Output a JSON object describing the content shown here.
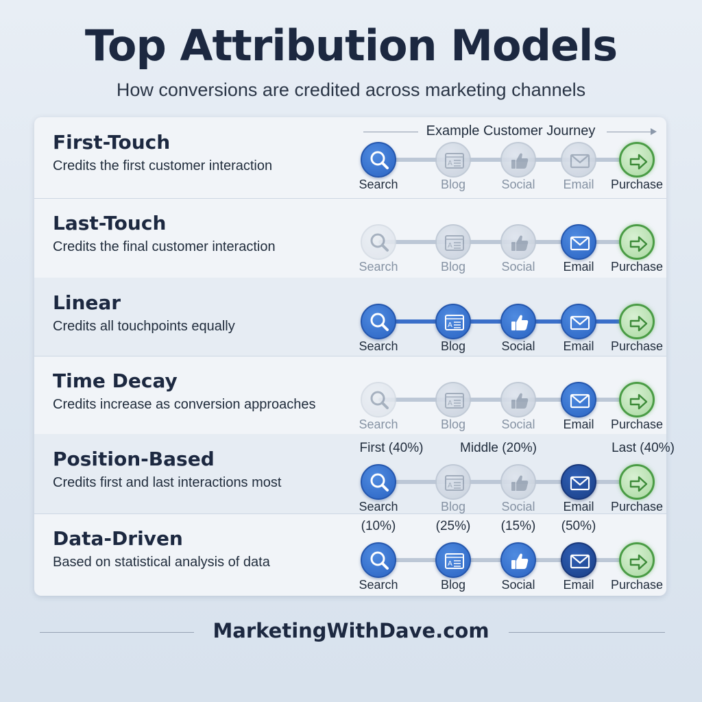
{
  "title": "Top Attribution Models",
  "subtitle": "How conversions are credited across marketing channels",
  "journey_label": "Example Customer Journey",
  "touchpoints": [
    "Search",
    "Blog",
    "Social",
    "Email",
    "Purchase"
  ],
  "icons": [
    "search-icon",
    "blog-icon",
    "social-like-icon",
    "email-icon",
    "purchase-arrow-icon"
  ],
  "models": [
    {
      "name": "First-Touch",
      "description": "Credits the first customer interaction",
      "node_states": [
        "active",
        "faded",
        "faded",
        "faded",
        "purchase"
      ],
      "track": "muted",
      "weights": []
    },
    {
      "name": "Last-Touch",
      "description": "Credits the final customer interaction",
      "node_states": [
        "verylight",
        "faded",
        "faded",
        "active",
        "purchase"
      ],
      "track": "muted",
      "weights": []
    },
    {
      "name": "Linear",
      "description": "Credits all touchpoints equally",
      "node_states": [
        "active",
        "active",
        "active",
        "active",
        "purchase"
      ],
      "track": "blue",
      "weights": []
    },
    {
      "name": "Time Decay",
      "description": "Credits increase as conversion approaches",
      "node_states": [
        "verylight",
        "faded",
        "faded",
        "active",
        "purchase"
      ],
      "track": "muted",
      "weights": []
    },
    {
      "name": "Position-Based",
      "description": "Credits first and last interactions most",
      "node_states": [
        "active",
        "faded",
        "faded",
        "dark",
        "purchase"
      ],
      "track": "muted",
      "weights": [
        "First (40%)",
        "Middle (20%)",
        "Last (40%)"
      ]
    },
    {
      "name": "Data-Driven",
      "description": "Based on statistical analysis of data",
      "node_states": [
        "active",
        "active",
        "active",
        "dark",
        "purchase"
      ],
      "track": "muted",
      "weights": [
        "(10%)",
        "(25%)",
        "(15%)",
        "(50%)"
      ]
    }
  ],
  "footer": "MarketingWithDave.com",
  "colors": {
    "active_blue": "#2a63c2",
    "dark_blue": "#1a3f86",
    "purchase_green": "#4a9c45",
    "faded_gray": "#c6cfdb"
  }
}
